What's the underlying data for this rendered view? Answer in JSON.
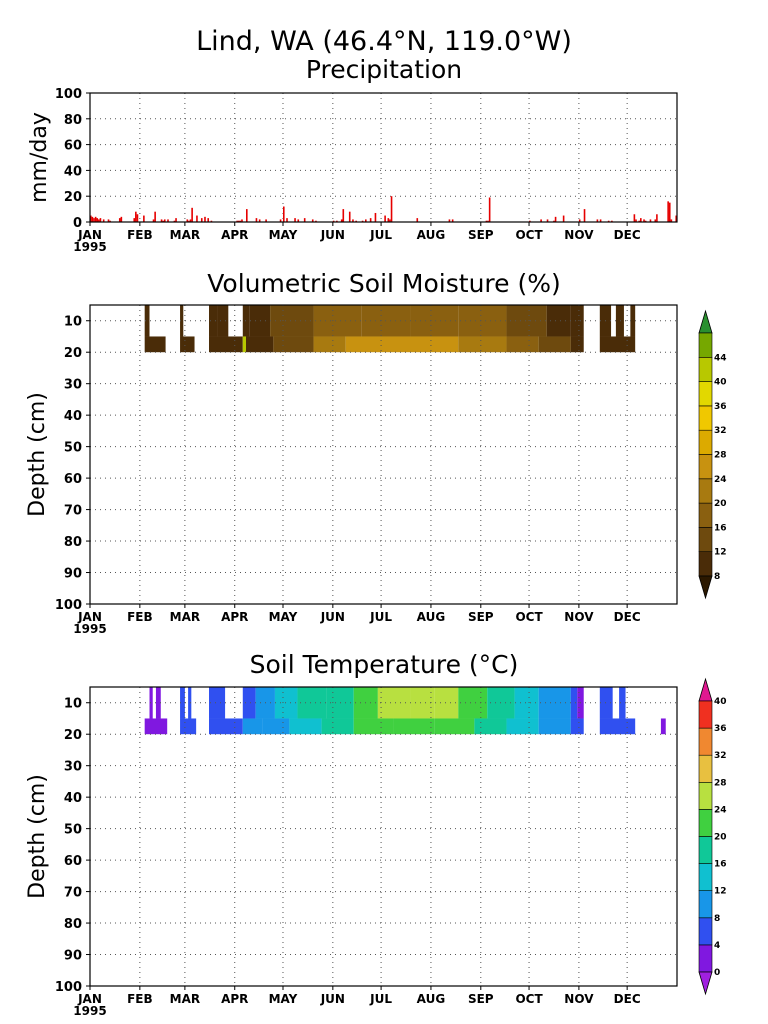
{
  "title": "Lind, WA  (46.4°N, 119.0°W)",
  "months": [
    "JAN",
    "FEB",
    "MAR",
    "APR",
    "MAY",
    "JUN",
    "JUL",
    "AUG",
    "SEP",
    "OCT",
    "NOV",
    "DEC"
  ],
  "year": "1995",
  "colors": {
    "precip_bar": "#e60000",
    "grid": "#555555"
  },
  "chart_data": [
    {
      "type": "bar",
      "title": "Precipitation",
      "ylabel": "mm/day",
      "xlabel": "",
      "ylim": [
        0,
        100
      ],
      "yticks": [
        0,
        20,
        40,
        60,
        80,
        100
      ],
      "x_range_days": [
        1,
        365
      ],
      "grid": true,
      "x": [
        1,
        2,
        3,
        4,
        5,
        6,
        7,
        9,
        12,
        13,
        19,
        20,
        28,
        29,
        30,
        34,
        40,
        41,
        45,
        46,
        47,
        49,
        53,
        54,
        61,
        62,
        63,
        64,
        67,
        70,
        72,
        74,
        76,
        92,
        93,
        94,
        95,
        98,
        104,
        106,
        110,
        119,
        121,
        123,
        128,
        130,
        134,
        139,
        141,
        152,
        154,
        157,
        158,
        162,
        164,
        166,
        170,
        172,
        175,
        178,
        184,
        186,
        187,
        188,
        204,
        224,
        226,
        247,
        248,
        249,
        274,
        281,
        285,
        289,
        290,
        295,
        305,
        308,
        316,
        318,
        323,
        325,
        339,
        340,
        342,
        343,
        345,
        346,
        349,
        352,
        353,
        360,
        361,
        362,
        365
      ],
      "values": [
        5,
        4,
        3,
        4,
        3,
        2,
        3,
        2,
        2,
        1,
        3,
        4,
        3,
        8,
        6,
        5,
        2,
        8,
        2,
        1,
        2,
        2,
        1,
        3,
        2,
        1,
        2,
        11,
        5,
        3,
        4,
        3,
        1,
        1,
        1,
        1,
        2,
        10,
        3,
        2,
        2,
        2,
        12,
        3,
        3,
        2,
        3,
        2,
        1,
        1,
        1,
        2,
        10,
        8,
        2,
        1,
        1,
        2,
        3,
        7,
        5,
        3,
        2,
        20,
        3,
        2,
        2,
        1,
        1,
        19,
        1,
        2,
        2,
        1,
        4,
        5,
        2,
        10,
        2,
        2,
        1,
        1,
        6,
        2,
        1,
        3,
        2,
        1,
        2,
        2,
        6,
        16,
        15,
        2,
        5
      ]
    },
    {
      "type": "heatmap",
      "title": "Volumetric Soil Moisture (%)",
      "ylabel": "Depth (cm)",
      "ylim": [
        100,
        5
      ],
      "yticks": [
        10,
        20,
        30,
        40,
        50,
        60,
        70,
        80,
        90,
        100
      ],
      "depths_cm": [
        10,
        20
      ],
      "colorbar": {
        "levels": [
          8,
          12,
          16,
          20,
          24,
          28,
          32,
          36,
          40,
          44
        ],
        "labels": [
          "8",
          "12",
          "16",
          "20",
          "24",
          "28",
          "32",
          "36",
          "40",
          "44"
        ],
        "colors": [
          "#2b1800",
          "#4a2c08",
          "#6e4a0e",
          "#8a6010",
          "#a87a10",
          "#c89210",
          "#dcaa00",
          "#f0c800",
          "#e2d800",
          "#b8c800",
          "#76a800",
          "#2a9030"
        ]
      },
      "rows": [
        {
          "depth_cm": 10,
          "segments": [
            {
              "start": 35,
              "end": 38,
              "value": 8
            },
            {
              "start": 57,
              "end": 59,
              "value": 8
            },
            {
              "start": 75,
              "end": 80,
              "value": 8
            },
            {
              "start": 80,
              "end": 87,
              "value": 10
            },
            {
              "start": 96,
              "end": 100,
              "value": 9
            },
            {
              "start": 100,
              "end": 113,
              "value": 11
            },
            {
              "start": 113,
              "end": 140,
              "value": 15
            },
            {
              "start": 140,
              "end": 170,
              "value": 17
            },
            {
              "start": 170,
              "end": 200,
              "value": 18
            },
            {
              "start": 200,
              "end": 230,
              "value": 17
            },
            {
              "start": 230,
              "end": 260,
              "value": 16
            },
            {
              "start": 260,
              "end": 285,
              "value": 14
            },
            {
              "start": 285,
              "end": 300,
              "value": 11
            },
            {
              "start": 300,
              "end": 308,
              "value": 8
            },
            {
              "start": 318,
              "end": 325,
              "value": 8
            },
            {
              "start": 328,
              "end": 333,
              "value": 8
            },
            {
              "start": 337,
              "end": 340,
              "value": 8
            }
          ]
        },
        {
          "depth_cm": 20,
          "segments": [
            {
              "start": 35,
              "end": 48,
              "value": 8
            },
            {
              "start": 57,
              "end": 66,
              "value": 8
            },
            {
              "start": 75,
              "end": 96,
              "value": 9
            },
            {
              "start": 96,
              "end": 98,
              "value": 40
            },
            {
              "start": 98,
              "end": 115,
              "value": 9
            },
            {
              "start": 115,
              "end": 140,
              "value": 14
            },
            {
              "start": 140,
              "end": 160,
              "value": 20
            },
            {
              "start": 160,
              "end": 195,
              "value": 24
            },
            {
              "start": 195,
              "end": 230,
              "value": 25
            },
            {
              "start": 230,
              "end": 260,
              "value": 22
            },
            {
              "start": 260,
              "end": 280,
              "value": 17
            },
            {
              "start": 280,
              "end": 300,
              "value": 12
            },
            {
              "start": 300,
              "end": 308,
              "value": 8
            },
            {
              "start": 318,
              "end": 340,
              "value": 8
            }
          ]
        }
      ]
    },
    {
      "type": "heatmap",
      "title": "Soil Temperature (°C)",
      "ylabel": "Depth (cm)",
      "ylim": [
        100,
        5
      ],
      "yticks": [
        10,
        20,
        30,
        40,
        50,
        60,
        70,
        80,
        90,
        100
      ],
      "depths_cm": [
        10,
        20
      ],
      "colorbar": {
        "levels": [
          0,
          4,
          8,
          12,
          16,
          20,
          24,
          28,
          32,
          36,
          40
        ],
        "labels": [
          "0",
          "4",
          "8",
          "12",
          "16",
          "20",
          "24",
          "28",
          "32",
          "36",
          "40"
        ],
        "colors": [
          "#a020e0",
          "#8018e0",
          "#3050f0",
          "#1896e8",
          "#10c0d0",
          "#10c898",
          "#40d040",
          "#b8e040",
          "#e8c040",
          "#f08830",
          "#f03020",
          "#e01890"
        ]
      },
      "rows": [
        {
          "depth_cm": 10,
          "segments": [
            {
              "start": 38,
              "end": 40,
              "value": 1
            },
            {
              "start": 42,
              "end": 45,
              "value": 1
            },
            {
              "start": 57,
              "end": 60,
              "value": 5
            },
            {
              "start": 62,
              "end": 64,
              "value": 5
            },
            {
              "start": 75,
              "end": 85,
              "value": 6
            },
            {
              "start": 96,
              "end": 104,
              "value": 7
            },
            {
              "start": 104,
              "end": 116,
              "value": 10
            },
            {
              "start": 116,
              "end": 130,
              "value": 13
            },
            {
              "start": 130,
              "end": 148,
              "value": 17
            },
            {
              "start": 148,
              "end": 165,
              "value": 19
            },
            {
              "start": 165,
              "end": 180,
              "value": 22
            },
            {
              "start": 180,
              "end": 200,
              "value": 25
            },
            {
              "start": 200,
              "end": 215,
              "value": 26
            },
            {
              "start": 215,
              "end": 230,
              "value": 24
            },
            {
              "start": 230,
              "end": 248,
              "value": 21
            },
            {
              "start": 248,
              "end": 265,
              "value": 17
            },
            {
              "start": 265,
              "end": 280,
              "value": 13
            },
            {
              "start": 280,
              "end": 300,
              "value": 9
            },
            {
              "start": 300,
              "end": 304,
              "value": 6
            },
            {
              "start": 304,
              "end": 308,
              "value": 3
            },
            {
              "start": 318,
              "end": 326,
              "value": 5
            },
            {
              "start": 330,
              "end": 334,
              "value": 5
            }
          ]
        },
        {
          "depth_cm": 20,
          "segments": [
            {
              "start": 35,
              "end": 49,
              "value": 1
            },
            {
              "start": 57,
              "end": 67,
              "value": 5
            },
            {
              "start": 75,
              "end": 96,
              "value": 6
            },
            {
              "start": 96,
              "end": 108,
              "value": 8
            },
            {
              "start": 108,
              "end": 125,
              "value": 11
            },
            {
              "start": 125,
              "end": 145,
              "value": 15
            },
            {
              "start": 145,
              "end": 165,
              "value": 19
            },
            {
              "start": 165,
              "end": 190,
              "value": 22
            },
            {
              "start": 190,
              "end": 215,
              "value": 23
            },
            {
              "start": 215,
              "end": 240,
              "value": 21
            },
            {
              "start": 240,
              "end": 260,
              "value": 17
            },
            {
              "start": 260,
              "end": 280,
              "value": 13
            },
            {
              "start": 280,
              "end": 300,
              "value": 9
            },
            {
              "start": 300,
              "end": 308,
              "value": 5
            },
            {
              "start": 318,
              "end": 340,
              "value": 6
            },
            {
              "start": 356,
              "end": 359,
              "value": 2
            }
          ]
        }
      ]
    }
  ]
}
